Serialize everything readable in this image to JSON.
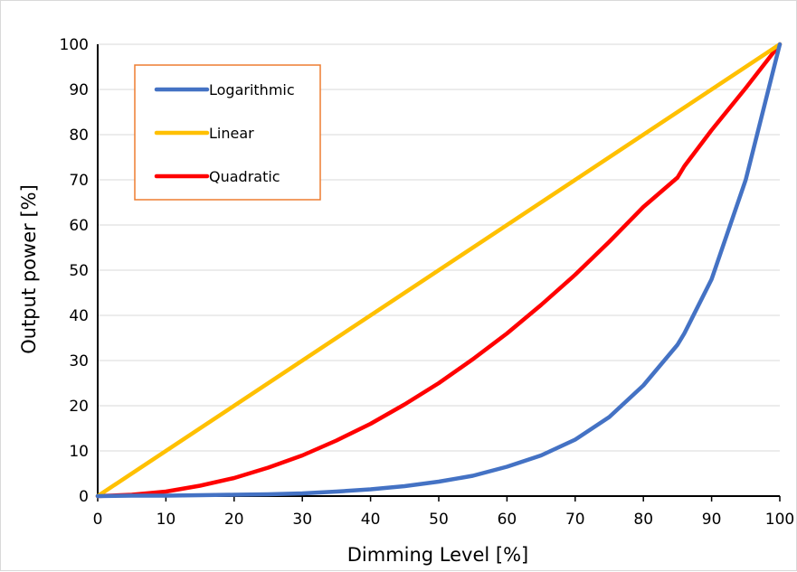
{
  "chart_data": {
    "type": "line",
    "title": "",
    "xlabel": "Dimming Level [%]",
    "ylabel": "Output power [%]",
    "xlim": [
      0,
      100
    ],
    "ylim": [
      0,
      100
    ],
    "x_ticks": [
      0,
      10,
      20,
      30,
      40,
      50,
      60,
      70,
      80,
      90,
      100
    ],
    "y_ticks": [
      0,
      10,
      20,
      30,
      40,
      50,
      60,
      70,
      80,
      90,
      100
    ],
    "grid": "horizontal",
    "legend_position": "top-left",
    "x": [
      0,
      5,
      10,
      15,
      20,
      25,
      30,
      35,
      40,
      45,
      50,
      55,
      60,
      65,
      70,
      75,
      80,
      85,
      86,
      90,
      95,
      100
    ],
    "series": [
      {
        "name": "Logarithmic",
        "color": "#4472c4",
        "values": [
          0,
          0.1,
          0.1,
          0.2,
          0.3,
          0.4,
          0.6,
          1.0,
          1.5,
          2.2,
          3.2,
          4.5,
          6.5,
          9.0,
          12.5,
          17.5,
          24.5,
          33.5,
          36,
          48,
          70,
          100
        ]
      },
      {
        "name": "Linear",
        "color": "#ffc000",
        "values": [
          0,
          5,
          10,
          15,
          20,
          25,
          30,
          35,
          40,
          45,
          50,
          55,
          60,
          65,
          70,
          75,
          80,
          85,
          86,
          90,
          95,
          100
        ]
      },
      {
        "name": "Quadratic",
        "color": "#ff0000",
        "values": [
          0,
          0.3,
          1.0,
          2.3,
          4.0,
          6.3,
          9.0,
          12.3,
          16.0,
          20.3,
          25.0,
          30.3,
          36.0,
          42.3,
          49.0,
          56.3,
          64.0,
          70.5,
          73.0,
          81.0,
          90.3,
          100
        ]
      }
    ]
  }
}
